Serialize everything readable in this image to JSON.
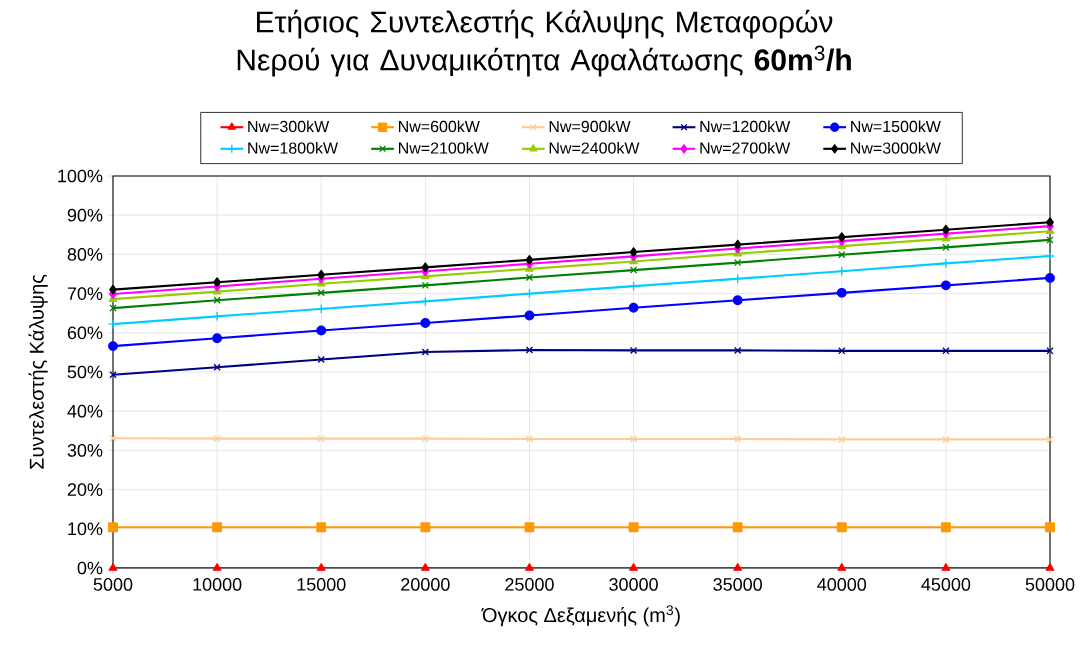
{
  "chart_data": {
    "type": "line",
    "title": "Ετήσιος Συντελεστής Κάλυψης Μεταφορών Νερού για Δυναμικότητα Αφαλάτωσης **60m**$^{3}$**/h**",
    "xlabel": "Όγκος Δεξαμενής (m$^{3}$)",
    "ylabel": "Συντελεστής Κάλυψης",
    "x": [
      5000,
      10000,
      15000,
      20000,
      25000,
      30000,
      35000,
      40000,
      45000,
      50000
    ],
    "xlim": [
      5000,
      50000
    ],
    "xticks": [
      5000,
      10000,
      15000,
      20000,
      25000,
      30000,
      35000,
      40000,
      45000,
      50000
    ],
    "ylim": [
      0,
      100
    ],
    "yticks": [
      {
        "value": 0,
        "label": "0%"
      },
      {
        "value": 10,
        "label": "10%"
      },
      {
        "value": 20,
        "label": "20%"
      },
      {
        "value": 30,
        "label": "30%"
      },
      {
        "value": 40,
        "label": "40%"
      },
      {
        "value": 50,
        "label": "50%"
      },
      {
        "value": 60,
        "label": "60%"
      },
      {
        "value": 70,
        "label": "70%"
      },
      {
        "value": 80,
        "label": "80%"
      },
      {
        "value": 90,
        "label": "90%"
      },
      {
        "value": 100,
        "label": "100%"
      }
    ],
    "grid": true,
    "legend": "top",
    "line_style": "solid",
    "series": [
      {
        "name": "Nw=300kW",
        "color": "#ff0000",
        "marker": "triangle",
        "values": [
          0,
          0,
          0,
          0,
          0,
          0,
          0,
          0,
          0,
          0
        ]
      },
      {
        "name": "Nw=600kW",
        "color": "#ff9900",
        "marker": "square",
        "values": [
          10.4,
          10.4,
          10.4,
          10.4,
          10.4,
          10.4,
          10.4,
          10.4,
          10.4,
          10.4
        ]
      },
      {
        "name": "Nw=900kW",
        "color": "#ffcc99",
        "marker": "cross",
        "values": [
          33.1,
          33.0,
          33.0,
          33.0,
          32.9,
          32.9,
          32.9,
          32.8,
          32.8,
          32.8
        ]
      },
      {
        "name": "Nw=1200kW",
        "color": "#000080",
        "marker": "cross",
        "values": [
          49.3,
          51.2,
          53.2,
          55.1,
          55.6,
          55.5,
          55.5,
          55.4,
          55.4,
          55.4
        ]
      },
      {
        "name": "Nw=1500kW",
        "color": "#0000ff",
        "marker": "circle",
        "values": [
          56.6,
          58.6,
          60.6,
          62.5,
          64.4,
          66.4,
          68.3,
          70.2,
          72.1,
          74.0
        ]
      },
      {
        "name": "Nw=1800kW",
        "color": "#00ccff",
        "marker": "plus",
        "values": [
          62.2,
          64.2,
          66.1,
          68.0,
          70.0,
          71.9,
          73.8,
          75.7,
          77.7,
          79.6
        ]
      },
      {
        "name": "Nw=2100kW",
        "color": "#008000",
        "marker": "cross",
        "values": [
          66.3,
          68.3,
          70.2,
          72.1,
          74.1,
          76.0,
          77.9,
          79.9,
          81.8,
          83.7
        ]
      },
      {
        "name": "Nw=2400kW",
        "color": "#99cc00",
        "marker": "triangle",
        "values": [
          68.6,
          70.5,
          72.5,
          74.4,
          76.3,
          78.2,
          80.2,
          82.1,
          84.0,
          85.9
        ]
      },
      {
        "name": "Nw=2700kW",
        "color": "#ff00ff",
        "marker": "diamond",
        "values": [
          69.9,
          71.8,
          73.8,
          75.7,
          77.6,
          79.5,
          81.5,
          83.4,
          85.3,
          87.2
        ]
      },
      {
        "name": "Nw=3000kW",
        "color": "#000000",
        "marker": "diamond",
        "values": [
          71.0,
          72.9,
          74.8,
          76.7,
          78.6,
          80.6,
          82.5,
          84.4,
          86.3,
          88.2
        ]
      }
    ]
  }
}
